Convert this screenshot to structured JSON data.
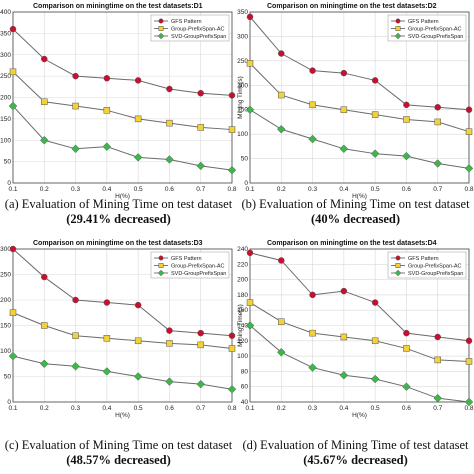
{
  "chart_data": [
    {
      "type": "line",
      "title": "Comparison on miningtime on the test datasets:D1",
      "xlabel": "H(%)",
      "ylabel": "",
      "x": [
        0.1,
        0.2,
        0.3,
        0.4,
        0.5,
        0.6,
        0.7,
        0.8
      ],
      "xticks": [
        "0.1",
        "0.2",
        "0.3",
        "0.4",
        "0.5",
        "0.6",
        "0.7",
        "0.8"
      ],
      "yticks": [
        0,
        50,
        100,
        150,
        200,
        250,
        300,
        350,
        400
      ],
      "ylim": [
        0,
        400
      ],
      "legend_position": "top-right",
      "series": [
        {
          "name": "GFS Pattern",
          "values": [
            360,
            290,
            250,
            245,
            240,
            220,
            210,
            205
          ]
        },
        {
          "name": "Group-PrefixSpan-AC",
          "values": [
            260,
            190,
            180,
            170,
            150,
            140,
            130,
            125
          ]
        },
        {
          "name": "SVD-GroupPrefixSpan",
          "values": [
            180,
            100,
            80,
            85,
            60,
            55,
            40,
            30
          ]
        }
      ],
      "caption_main": "(a) Evaluation of Mining Time on test dataset ",
      "caption_bold": "(29.41% decreased)"
    },
    {
      "type": "line",
      "title": "Comparison on miningtime on the test datasets:D2",
      "xlabel": "H(%)",
      "ylabel": "Mining Time(s)",
      "x": [
        0.1,
        0.2,
        0.3,
        0.4,
        0.5,
        0.6,
        0.7,
        0.8
      ],
      "xticks": [
        "0.1",
        "0.2",
        "0.3",
        "0.4",
        "0.5",
        "0.6",
        "0.7",
        "0.8"
      ],
      "yticks": [
        0,
        50,
        100,
        150,
        200,
        250,
        300,
        350
      ],
      "ylim": [
        0,
        350
      ],
      "legend_position": "top-right",
      "series": [
        {
          "name": "GFS Pattern",
          "values": [
            340,
            265,
            230,
            225,
            210,
            160,
            155,
            150
          ]
        },
        {
          "name": "Group-PrefixSpan-AC",
          "values": [
            245,
            180,
            160,
            150,
            140,
            130,
            125,
            105
          ]
        },
        {
          "name": "SVD-GroupPrefixSpan",
          "values": [
            150,
            110,
            90,
            70,
            60,
            55,
            40,
            30
          ]
        }
      ],
      "caption_main": "(b) Evaluation of Mining Time on test dataset ",
      "caption_bold": "(40% decreased)"
    },
    {
      "type": "line",
      "title": "Comparison on miningtime on the test datasets:D3",
      "xlabel": "H(%)",
      "ylabel": "",
      "x": [
        0.1,
        0.2,
        0.3,
        0.4,
        0.5,
        0.6,
        0.7,
        0.8
      ],
      "xticks": [
        "0.1",
        "0.2",
        "0.3",
        "0.4",
        "0.5",
        "0.6",
        "0.7",
        "0.8"
      ],
      "yticks": [
        0,
        50,
        100,
        150,
        200,
        250,
        300
      ],
      "ylim": [
        0,
        300
      ],
      "legend_position": "top-right",
      "series": [
        {
          "name": "GFS Pattern",
          "values": [
            300,
            245,
            200,
            195,
            190,
            140,
            135,
            130
          ]
        },
        {
          "name": "Group-PrefixSpan-AC",
          "values": [
            175,
            150,
            130,
            125,
            120,
            115,
            112,
            105
          ]
        },
        {
          "name": "SVD-GroupPrefixSpan",
          "values": [
            90,
            75,
            70,
            60,
            50,
            40,
            35,
            25
          ]
        }
      ],
      "caption_main": "(c) Evaluation of Mining Time on test dataset ",
      "caption_bold": "(48.57% decreased)"
    },
    {
      "type": "line",
      "title": "Comparison on miningtime on the test datasets:D4",
      "xlabel": "H(%)",
      "ylabel": "Mining Time(s)",
      "x": [
        0.1,
        0.2,
        0.3,
        0.4,
        0.5,
        0.6,
        0.7,
        0.8
      ],
      "xticks": [
        "0.1",
        "0.2",
        "0.3",
        "0.4",
        "0.5",
        "0.6",
        "0.7",
        "0.8"
      ],
      "yticks": [
        40,
        60,
        80,
        100,
        120,
        140,
        160,
        180,
        200,
        220,
        240
      ],
      "ylim": [
        40,
        240
      ],
      "legend_position": "top-right",
      "series": [
        {
          "name": "GFS Pattern",
          "values": [
            235,
            225,
            180,
            185,
            170,
            130,
            125,
            120
          ]
        },
        {
          "name": "Group-PrefixSpan-AC",
          "values": [
            170,
            145,
            130,
            125,
            120,
            110,
            95,
            93
          ]
        },
        {
          "name": "SVD-GroupPrefixSpan",
          "values": [
            140,
            105,
            85,
            75,
            70,
            60,
            45,
            40
          ]
        }
      ],
      "caption_main": "(d) Evaluation of Mining Time of test dataset ",
      "caption_bold": "(45.67% decreased)"
    }
  ],
  "colors": {
    "line": "#6b6b6b",
    "gfs_marker": "#c8102e",
    "group_marker": "#f2d23a",
    "svd_marker": "#3cb84a",
    "grid": "#d9d9d9",
    "axis": "#444444"
  }
}
